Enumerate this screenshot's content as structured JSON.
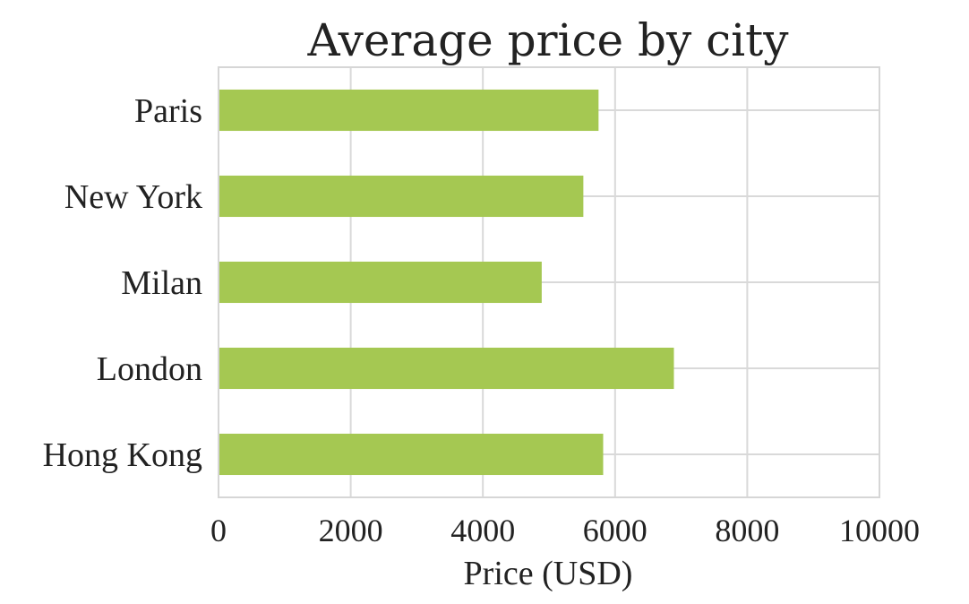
{
  "chart_data": {
    "type": "bar",
    "orientation": "horizontal",
    "title": "Average price by city",
    "xlabel": "Price (USD)",
    "ylabel": "",
    "categories": [
      "Paris",
      "New York",
      "Milan",
      "London",
      "Hong Kong"
    ],
    "values": [
      5750,
      5520,
      4890,
      6890,
      5820
    ],
    "xlim": [
      0,
      10000
    ],
    "xticks": [
      0,
      2000,
      4000,
      6000,
      8000,
      10000
    ],
    "xtick_labels": [
      "0",
      "2000",
      "4000",
      "6000",
      "8000",
      "10000"
    ],
    "grid": true,
    "legend": "none",
    "colors": {
      "bar": "#a5c852",
      "grid": "#d9d9d9",
      "text": "#222222"
    }
  }
}
